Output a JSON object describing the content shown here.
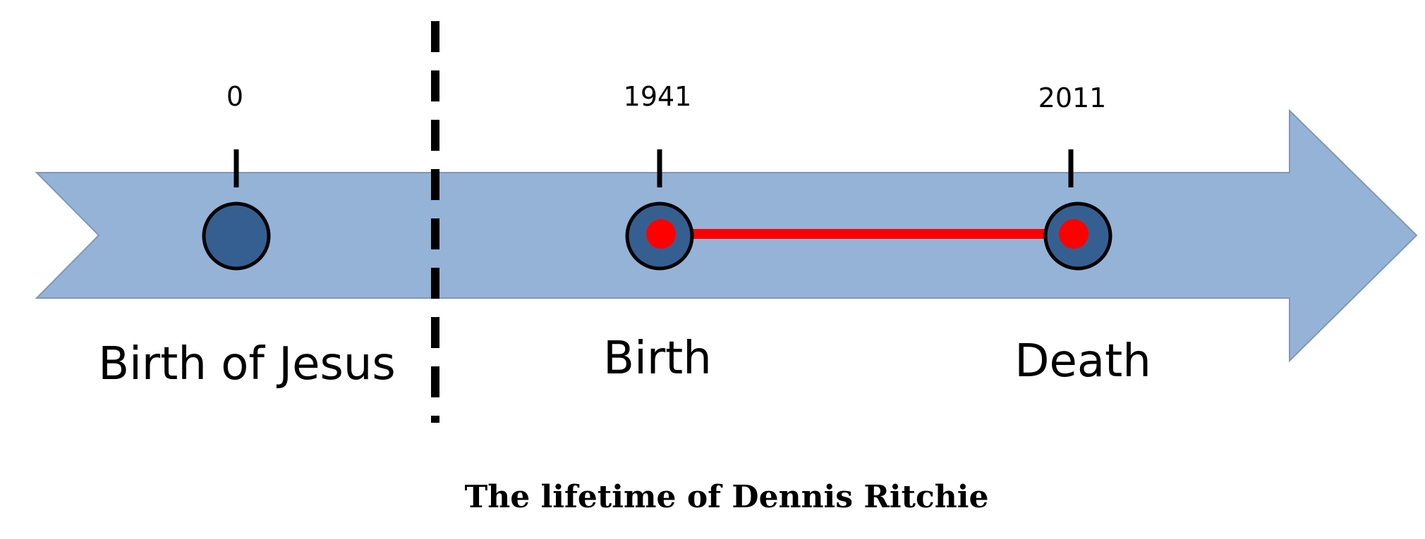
{
  "timeline": {
    "events": [
      {
        "year": "0",
        "label": "Birth of Jesus"
      },
      {
        "year": "1941",
        "label": "Birth"
      },
      {
        "year": "2011",
        "label": "Death"
      }
    ]
  },
  "caption": "The lifetime of Dennis Ritchie",
  "colors": {
    "arrow_fill": "#95b3d7",
    "arrow_stroke": "#7f97b7",
    "marker_fill": "#365f91",
    "marker_stroke": "#000000",
    "lifespan_line": "#ff0000",
    "separator": "#000000"
  }
}
